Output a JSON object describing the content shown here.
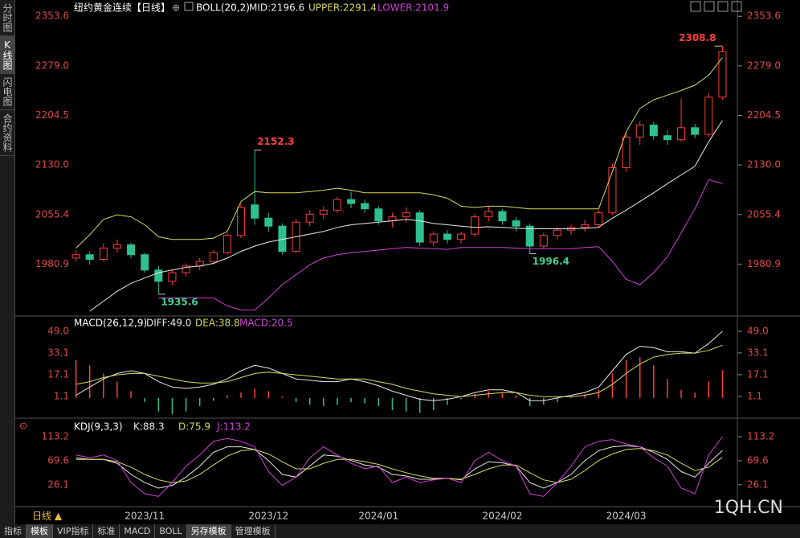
{
  "chart_data": [
    {
      "type": "candlestick",
      "title": "纽约黄金连续【日线】",
      "indicator": "BOLL(20,2)",
      "categories": [
        null,
        null,
        null,
        null,
        null,
        "2023/11",
        null,
        null,
        null,
        null,
        null,
        null,
        null,
        null,
        "2023/12",
        null,
        null,
        null,
        null,
        null,
        null,
        null,
        "2024/01",
        null,
        null,
        null,
        null,
        null,
        null,
        null,
        null,
        "2024/02",
        null,
        null,
        null,
        null,
        null,
        null,
        null,
        null,
        "2024/03",
        null,
        null,
        null,
        null,
        null,
        null,
        null
      ],
      "ohlc": [
        [
          1990,
          2002,
          1985,
          1995
        ],
        [
          1995,
          2000,
          1980,
          1988
        ],
        [
          1988,
          2012,
          1985,
          2005
        ],
        [
          2005,
          2018,
          1998,
          2010
        ],
        [
          2010,
          2013,
          1990,
          1995
        ],
        [
          1995,
          1998,
          1968,
          1972
        ],
        [
          1972,
          1978,
          1935.6,
          1955
        ],
        [
          1955,
          1972,
          1950,
          1968
        ],
        [
          1968,
          1982,
          1962,
          1978
        ],
        [
          1978,
          1990,
          1972,
          1985
        ],
        [
          1985,
          2002,
          1980,
          1998
        ],
        [
          1998,
          2028,
          1995,
          2024
        ],
        [
          2024,
          2072,
          2020,
          2066
        ],
        [
          2070,
          2152.3,
          2040,
          2050
        ],
        [
          2050,
          2058,
          2030,
          2038
        ],
        [
          2038,
          2042,
          1995,
          2000
        ],
        [
          2000,
          2048,
          1998,
          2044
        ],
        [
          2044,
          2062,
          2038,
          2056
        ],
        [
          2056,
          2068,
          2048,
          2062
        ],
        [
          2062,
          2082,
          2058,
          2078
        ],
        [
          2078,
          2090,
          2065,
          2072
        ],
        [
          2072,
          2078,
          2058,
          2064
        ],
        [
          2064,
          2068,
          2040,
          2046
        ],
        [
          2046,
          2058,
          2036,
          2052
        ],
        [
          2052,
          2066,
          2044,
          2058
        ],
        [
          2058,
          2062,
          2008,
          2014
        ],
        [
          2014,
          2030,
          2008,
          2026
        ],
        [
          2026,
          2032,
          2012,
          2018
        ],
        [
          2018,
          2030,
          2012,
          2026
        ],
        [
          2026,
          2056,
          2022,
          2052
        ],
        [
          2052,
          2068,
          2045,
          2060
        ],
        [
          2060,
          2064,
          2040,
          2046
        ],
        [
          2046,
          2052,
          2030,
          2038
        ],
        [
          2038,
          2042,
          1996.4,
          2008
        ],
        [
          2008,
          2028,
          2004,
          2024
        ],
        [
          2024,
          2036,
          2018,
          2032
        ],
        [
          2032,
          2040,
          2025,
          2036
        ],
        [
          2036,
          2048,
          2030,
          2040
        ],
        [
          2040,
          2062,
          2036,
          2058
        ],
        [
          2058,
          2132,
          2055,
          2126
        ],
        [
          2126,
          2178,
          2120,
          2172
        ],
        [
          2172,
          2196,
          2160,
          2190
        ],
        [
          2190,
          2195,
          2168,
          2174
        ],
        [
          2174,
          2182,
          2160,
          2168
        ],
        [
          2168,
          2230,
          2165,
          2186
        ],
        [
          2186,
          2192,
          2170,
          2176
        ],
        [
          2176,
          2238,
          2172,
          2232
        ],
        [
          2232,
          2308.8,
          2228,
          2300
        ]
      ],
      "up_color": "#ff3c3c",
      "down_color": "#2fc08f",
      "series": [
        {
          "name": "MID:2196.6",
          "color": "#e8e8e8",
          "values": [
            null,
            1910,
            1925,
            1940,
            1952,
            1960,
            1968,
            1972,
            1976,
            1978,
            1982,
            1990,
            2000,
            2008,
            2014,
            2018,
            2022,
            2026,
            2030,
            2036,
            2040,
            2042,
            2044,
            2046,
            2048,
            2046,
            2042,
            2040,
            2038,
            2036,
            2037,
            2036,
            2035,
            2034,
            2034,
            2034,
            2034,
            2035,
            2036,
            2050,
            2062,
            2075,
            2088,
            2102,
            2115,
            2128,
            2165,
            2196.6
          ]
        },
        {
          "name": "UPPER:2291.4",
          "color": "#d8d860",
          "values": [
            2005,
            2025,
            2048,
            2055,
            2052,
            2040,
            2022,
            2018,
            2018,
            2018,
            2020,
            2030,
            2075,
            2090,
            2088,
            2088,
            2088,
            2090,
            2092,
            2095,
            2092,
            2088,
            2088,
            2088,
            2088,
            2088,
            2085,
            2080,
            2068,
            2066,
            2068,
            2068,
            2066,
            2064,
            2064,
            2064,
            2064,
            2064,
            2064,
            2120,
            2180,
            2215,
            2228,
            2235,
            2242,
            2250,
            2265,
            2291.4
          ]
        },
        {
          "name": "LOWER:2101.9",
          "color": "#d040d8",
          "values": [
            null,
            null,
            null,
            null,
            null,
            null,
            1930,
            1930,
            1930,
            1930,
            1930,
            1918,
            1912,
            1912,
            1930,
            1950,
            1965,
            1980,
            1990,
            1995,
            1998,
            2000,
            2002,
            2004,
            2006,
            2005,
            2004,
            2003,
            2006,
            2006,
            2006,
            2006,
            2005,
            2004,
            2004,
            2004,
            2004,
            2006,
            2007,
            1985,
            1958,
            1950,
            1968,
            1992,
            2028,
            2064,
            2108,
            2101.9
          ]
        }
      ],
      "annotations": [
        "2152.3",
        "2308.8",
        "1935.6",
        "1996.4"
      ],
      "ylim": [
        1904,
        2372
      ],
      "yticks": [
        2353.6,
        {
          "value": 2279,
          "label": "2279.0"
        },
        2204.5,
        {
          "value": 2130,
          "label": "2130.0"
        },
        2055.4,
        1980.9
      ]
    },
    {
      "type": "macd",
      "indicator": "MACD(26,12,9)",
      "series": [
        {
          "name": "DIFF:49.0",
          "color": "#e8e8e8",
          "values": [
            2,
            8,
            14,
            18,
            20,
            18,
            12,
            8,
            7,
            8,
            10,
            14,
            20,
            24,
            22,
            18,
            14,
            13,
            12,
            12,
            14,
            12,
            9,
            5,
            2,
            -1,
            -2,
            -1,
            1,
            4,
            6,
            6,
            4,
            -2,
            -2,
            0,
            2,
            4,
            8,
            20,
            32,
            38,
            37,
            34,
            34,
            33,
            40,
            49.0
          ]
        },
        {
          "name": "DEA:38.8",
          "color": "#d8d860",
          "values": [
            10,
            12,
            15,
            17,
            18,
            18,
            16,
            14,
            12,
            11,
            11,
            12,
            15,
            18,
            19,
            18,
            17,
            16,
            15,
            14,
            14,
            14,
            12,
            10,
            7,
            5,
            3,
            2,
            1,
            2,
            3,
            4,
            4,
            2,
            1,
            1,
            1,
            2,
            4,
            10,
            18,
            25,
            30,
            32,
            33,
            33,
            35,
            38.8
          ]
        },
        {
          "name": "MACD:20.5",
          "color": "#d040d8",
          "up_color": "#ff3c3c",
          "down_color": "#2fc08f",
          "values": [
            28,
            24,
            18,
            12,
            5,
            -3,
            -10,
            -12,
            -10,
            -6,
            -2,
            2,
            4,
            7,
            5,
            1,
            -3,
            -5,
            -6,
            -5,
            -3,
            -4,
            -6,
            -9,
            -10,
            -11,
            -9,
            -5,
            -1,
            3,
            5,
            4,
            2,
            -6,
            -5,
            -3,
            1,
            3,
            6,
            18,
            28,
            30,
            24,
            14,
            6,
            4,
            12,
            20.5
          ]
        }
      ],
      "ylim": [
        -13.7,
        57.3
      ],
      "yticks": [
        {
          "value": 49,
          "label": "49.0"
        },
        33.1,
        17.1,
        1.1
      ]
    },
    {
      "type": "line",
      "indicator": "KDJ(9,3,3)",
      "series": [
        {
          "name": "K:88.3",
          "color": "#e8e8e8",
          "values": [
            75,
            72,
            72,
            65,
            45,
            30,
            20,
            25,
            40,
            60,
            85,
            95,
            95,
            90,
            70,
            45,
            40,
            60,
            80,
            78,
            70,
            62,
            58,
            45,
            42,
            36,
            36,
            38,
            35,
            55,
            68,
            66,
            60,
            30,
            20,
            30,
            45,
            70,
            88,
            95,
            97,
            95,
            85,
            72,
            50,
            40,
            65,
            88.3
          ]
        },
        {
          "name": "D:75.9",
          "color": "#d8d860",
          "values": [
            72,
            72,
            72,
            68,
            58,
            45,
            35,
            30,
            33,
            45,
            62,
            78,
            88,
            90,
            82,
            68,
            55,
            55,
            65,
            72,
            72,
            68,
            63,
            55,
            48,
            42,
            38,
            38,
            36,
            45,
            55,
            62,
            62,
            48,
            35,
            30,
            36,
            52,
            70,
            82,
            90,
            92,
            88,
            80,
            65,
            52,
            58,
            75.9
          ]
        },
        {
          "name": "J:113.2",
          "color": "#d040d8",
          "values": [
            80,
            75,
            80,
            70,
            30,
            10,
            5,
            30,
            60,
            80,
            105,
            110,
            105,
            95,
            50,
            25,
            40,
            75,
            95,
            80,
            65,
            55,
            60,
            30,
            40,
            30,
            35,
            38,
            30,
            70,
            85,
            70,
            60,
            10,
            5,
            30,
            60,
            95,
            105,
            108,
            100,
            95,
            75,
            60,
            20,
            10,
            80,
            113.2
          ]
        }
      ],
      "ylim": [
        -10.6,
        141
      ],
      "yticks": [
        113.2,
        69.6,
        26.1
      ]
    }
  ],
  "ui": {
    "side_tabs": [
      "分时图",
      "K线图",
      "闪电图",
      "合约资料"
    ],
    "period": "日线 ▲",
    "watermark": "1QH.CN",
    "bottom_tabs": [
      "指标",
      "模板",
      "VIP指标",
      "标准",
      "MACD",
      "BOLL",
      "另存模板",
      "管理模板"
    ]
  }
}
